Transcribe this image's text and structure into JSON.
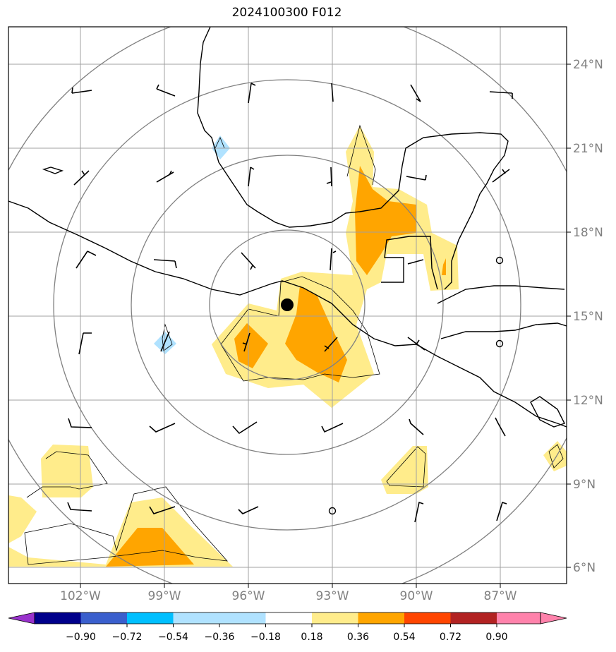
{
  "title": "2024100300 F012",
  "lat_labels": [
    "24°N",
    "21°N",
    "18°N",
    "15°N",
    "12°N",
    "9°N",
    "6°N"
  ],
  "lon_labels": [
    "102°W",
    "99°W",
    "96°W",
    "93°W",
    "90°W",
    "87°W"
  ],
  "colorbar": {
    "ticks": [
      "−0.90",
      "−0.72",
      "−0.54",
      "−0.36",
      "−0.18",
      "0.18",
      "0.36",
      "0.54",
      "0.72",
      "0.90"
    ],
    "colors": [
      "#9932cc",
      "#00008b",
      "#3a5fcd",
      "#00bfff",
      "#b0e2ff",
      "#ffffff",
      "#ffec8b",
      "#ffa500",
      "#ff4500",
      "#b22222",
      "#ff82ab"
    ]
  },
  "map": {
    "storm_marker": "storm-center-dot",
    "colors": {
      "light_blue": "#b0e2ff",
      "yellow": "#ffec8b",
      "orange": "#ffa500",
      "grid": "#a0a0a0",
      "rings": "#808080",
      "coast": "#000000"
    }
  }
}
